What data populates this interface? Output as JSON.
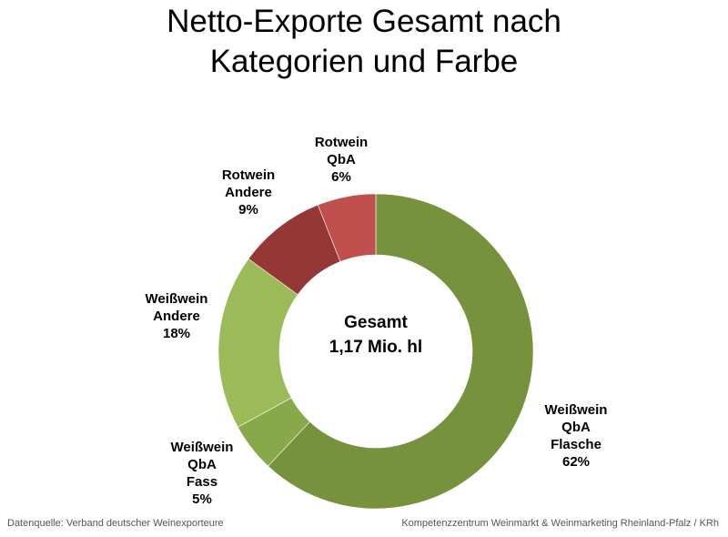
{
  "chart_data": {
    "type": "pie",
    "subtype": "donut",
    "title_lines": [
      "Netto-Exporte Gesamt nach",
      "Kategorien und Farbe"
    ],
    "center_label": [
      "Gesamt",
      "1,17 Mio. hl"
    ],
    "slices": [
      {
        "name": "Weißwein QbA Flasche",
        "label_lines": [
          "Weißwein",
          "QbA",
          "Flasche",
          "62%"
        ],
        "value": 62,
        "color": "#76923c"
      },
      {
        "name": "Weißwein QbA Fass",
        "label_lines": [
          "Weißwein",
          "QbA",
          "Fass",
          "5%"
        ],
        "value": 5,
        "color": "#88a94a"
      },
      {
        "name": "Weißwein Andere",
        "label_lines": [
          "Weißwein",
          "Andere",
          "18%"
        ],
        "value": 18,
        "color": "#9bbb59"
      },
      {
        "name": "Rotwein Andere",
        "label_lines": [
          "Rotwein",
          "Andere",
          "9%"
        ],
        "value": 9,
        "color": "#953735"
      },
      {
        "name": "Rotwein QbA",
        "label_lines": [
          "Rotwein",
          "QbA",
          "6%"
        ],
        "value": 6,
        "color": "#c0504d"
      }
    ],
    "start_angle_deg": 0,
    "direction": "clockwise",
    "legend": "none"
  },
  "footer": {
    "source": "Datenquelle: Verband deutscher Weinexporteure",
    "credit": "Kompetenzzentrum Weinmarkt & Weinmarketing Rheinland-Pfalz / KRh"
  }
}
